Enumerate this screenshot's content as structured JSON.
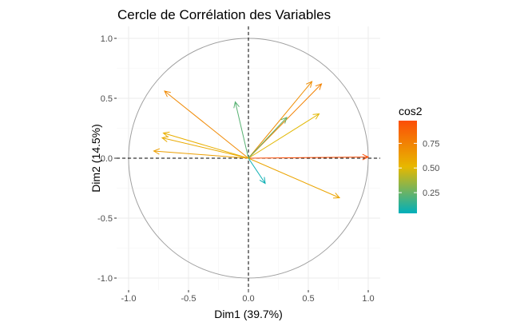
{
  "chart_data": {
    "type": "scatter",
    "subtype": "correlation-circle",
    "title": "Cercle de Corrélation des Variables",
    "xlabel": "Dim1 (39.7%)",
    "ylabel": "Dim2 (14.5%)",
    "xlim": [
      -1.0,
      1.0
    ],
    "ylim": [
      -1.0,
      1.0
    ],
    "x_ticks": [
      -1.0,
      -0.5,
      0.0,
      0.5,
      1.0
    ],
    "x_tick_labels": [
      "-1.0",
      "-0.5",
      "0.0",
      "0.5",
      "1.0"
    ],
    "y_ticks": [
      -1.0,
      -0.5,
      0.0,
      0.5,
      1.0
    ],
    "y_tick_labels": [
      "-1.0",
      "-0.5",
      "0.0",
      "0.5",
      "1.0"
    ],
    "grid": true,
    "unit_circle": true,
    "reference_lines": "dashed at x=0 and y=0",
    "legend": {
      "title": "cos2",
      "position": "right",
      "ticks": [
        0.25,
        0.5,
        0.75
      ],
      "tick_labels": [
        "0.25",
        "0.50",
        "0.75"
      ],
      "range": [
        0.04,
        0.98
      ],
      "colors": [
        "#00AFBB",
        "#E7B800",
        "#FC4E07"
      ]
    },
    "vectors": [
      {
        "x": 1.0,
        "y": 0.01,
        "cos2": 0.98
      },
      {
        "x": 0.61,
        "y": 0.62,
        "cos2": 0.75
      },
      {
        "x": 0.53,
        "y": 0.64,
        "cos2": 0.7
      },
      {
        "x": 0.59,
        "y": 0.37,
        "cos2": 0.5
      },
      {
        "x": 0.32,
        "y": 0.34,
        "cos2": 0.25
      },
      {
        "x": 0.76,
        "y": -0.33,
        "cos2": 0.6
      },
      {
        "x": 0.14,
        "y": -0.21,
        "cos2": 0.06
      },
      {
        "x": -0.11,
        "y": 0.47,
        "cos2": 0.22
      },
      {
        "x": -0.7,
        "y": 0.56,
        "cos2": 0.72
      },
      {
        "x": -0.71,
        "y": 0.21,
        "cos2": 0.55
      },
      {
        "x": -0.72,
        "y": 0.17,
        "cos2": 0.57
      },
      {
        "x": -0.79,
        "y": 0.06,
        "cos2": 0.62
      }
    ]
  }
}
